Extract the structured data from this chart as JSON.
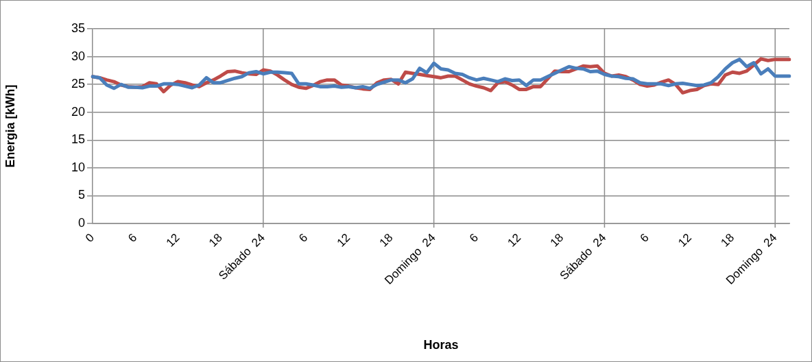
{
  "chart_data": {
    "type": "line",
    "xlabel": "Horas",
    "ylabel": "Energia [kWh]",
    "categories": [
      "0",
      null,
      null,
      null,
      null,
      null,
      "6",
      null,
      null,
      null,
      null,
      null,
      "12",
      null,
      null,
      null,
      null,
      null,
      "18",
      null,
      null,
      null,
      null,
      null,
      "Sábado  24",
      null,
      null,
      null,
      null,
      null,
      "6",
      null,
      null,
      null,
      null,
      null,
      "12",
      null,
      null,
      null,
      null,
      null,
      "18",
      null,
      null,
      null,
      null,
      null,
      "Domingo  24",
      null,
      null,
      null,
      null,
      null,
      "6",
      null,
      null,
      null,
      null,
      null,
      "12",
      null,
      null,
      null,
      null,
      null,
      "18",
      null,
      null,
      null,
      null,
      null,
      "Sábado  24",
      null,
      null,
      null,
      null,
      null,
      "6",
      null,
      null,
      null,
      null,
      null,
      "12",
      null,
      null,
      null,
      null,
      null,
      "18",
      null,
      null,
      null,
      null,
      null,
      "Domingo  24",
      null,
      null
    ],
    "series": [
      {
        "color": "#4a7ebb",
        "values": [
          26.4,
          26.2,
          24.9,
          24.3,
          25,
          24.5,
          24.5,
          24.4,
          24.7,
          24.7,
          25.1,
          25.1,
          25,
          24.7,
          24.4,
          24.9,
          26.2,
          25.3,
          25.3,
          25.7,
          26.1,
          26.4,
          27.1,
          27.3,
          26.9,
          27.2,
          27.2,
          27.1,
          27,
          25.1,
          25.1,
          24.9,
          24.6,
          24.6,
          24.7,
          24.5,
          24.6,
          24.4,
          24.6,
          24.3,
          25,
          25.4,
          25.8,
          25.8,
          25.3,
          26,
          27.9,
          27.1,
          28.8,
          27.8,
          27.6,
          27,
          26.8,
          26.2,
          25.8,
          26.1,
          25.8,
          25.5,
          26,
          25.7,
          25.8,
          24.8,
          25.8,
          25.8,
          26.4,
          27,
          27.6,
          28.2,
          27.9,
          27.8,
          27.3,
          27.4,
          26.8,
          26.5,
          26.4,
          26.1,
          26,
          25.3,
          25.1,
          25.1,
          25.1,
          24.8,
          25.1,
          25.2,
          25,
          24.8,
          24.9,
          25.3,
          26.4,
          27.8,
          28.9,
          29.5,
          28.2,
          28.9,
          26.9,
          27.8,
          26.5,
          26.5,
          26.5
        ]
      },
      {
        "color": "#be4b48",
        "values": [
          26.4,
          26.2,
          25.8,
          25.5,
          24.9,
          24.6,
          24.5,
          24.6,
          25.3,
          25.1,
          23.7,
          24.9,
          25.5,
          25.3,
          24.9,
          24.6,
          25.3,
          25.8,
          26.5,
          27.3,
          27.4,
          27.1,
          26.9,
          26.8,
          27.6,
          27.4,
          26.7,
          25.8,
          25,
          24.5,
          24.3,
          24.8,
          25.5,
          25.8,
          25.8,
          24.9,
          24.7,
          24.4,
          24.2,
          24.1,
          25.3,
          25.8,
          25.9,
          25.1,
          27.2,
          27,
          26.8,
          26.6,
          26.4,
          26.2,
          26.5,
          26.5,
          25.8,
          25.1,
          24.7,
          24.4,
          23.9,
          25.3,
          25.5,
          24.9,
          24.1,
          24.1,
          24.6,
          24.6,
          26,
          27.4,
          27.3,
          27.3,
          27.8,
          28.3,
          28.2,
          28.3,
          27,
          26.5,
          26.7,
          26.4,
          25.8,
          25,
          24.7,
          24.9,
          25.4,
          25.8,
          25,
          23.5,
          23.9,
          24.1,
          24.8,
          25.1,
          25,
          26.7,
          27.2,
          27,
          27.4,
          28.5,
          29.6,
          29.3,
          29.5,
          29.5,
          29.5
        ]
      }
    ],
    "ylim": [
      0,
      35
    ],
    "yticks": [
      0,
      5,
      10,
      15,
      20,
      25,
      30,
      35
    ],
    "grid": "y",
    "legend": false,
    "marker": "none",
    "line_style": "solid"
  }
}
